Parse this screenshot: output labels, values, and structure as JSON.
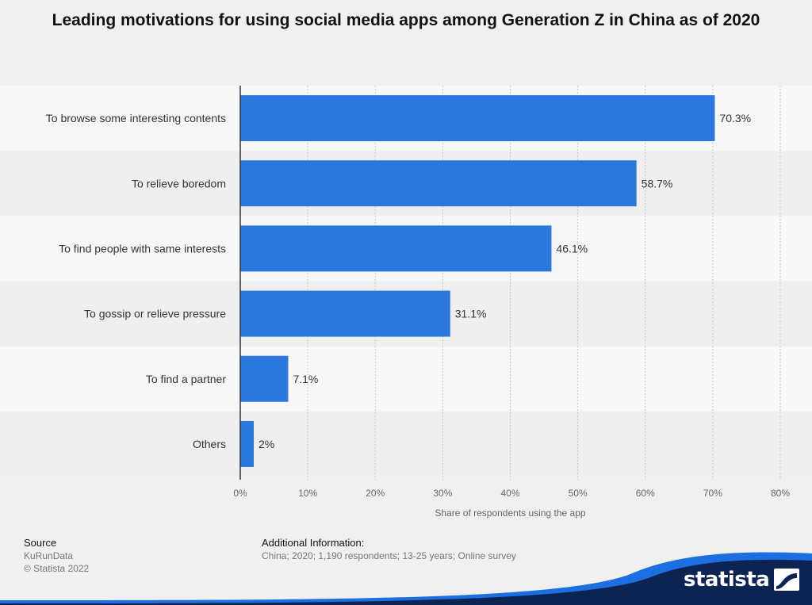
{
  "colors": {
    "bar": "#2a78de",
    "band_light": "#f7f7f7",
    "band_dark": "#efefef",
    "grid": "#c9c9c9",
    "brand_navy": "#0d2453",
    "brand_blue": "#1c6fe0"
  },
  "chart_data": {
    "type": "bar",
    "orientation": "horizontal",
    "title": "Leading motivations for using social media apps among Generation Z in China as of 2020",
    "xlabel": "Share of respondents using the app",
    "ylabel": "",
    "categories": [
      "To browse some interesting contents",
      "To relieve boredom",
      "To find people with same interests",
      "To gossip or relieve pressure",
      "To find a partner",
      "Others"
    ],
    "values": [
      70.3,
      58.7,
      46.1,
      31.1,
      7.1,
      2
    ],
    "value_labels": [
      "70.3%",
      "58.7%",
      "46.1%",
      "31.1%",
      "7.1%",
      "2%"
    ],
    "xlim": [
      0,
      80
    ],
    "xticks": [
      0,
      10,
      20,
      30,
      40,
      50,
      60,
      70,
      80
    ],
    "xtick_labels": [
      "0%",
      "10%",
      "20%",
      "30%",
      "40%",
      "50%",
      "60%",
      "70%",
      "80%"
    ],
    "grid": true,
    "legend": "none"
  },
  "footer": {
    "source_heading": "Source",
    "source_name": "KuRunData",
    "copyright": "© Statista 2022",
    "info_heading": "Additional Information:",
    "info_text": "China; 2020; 1,190 respondents; 13-25 years; Online survey"
  },
  "brand": {
    "name": "statista",
    "logo_icon": "statista-flag-icon"
  }
}
